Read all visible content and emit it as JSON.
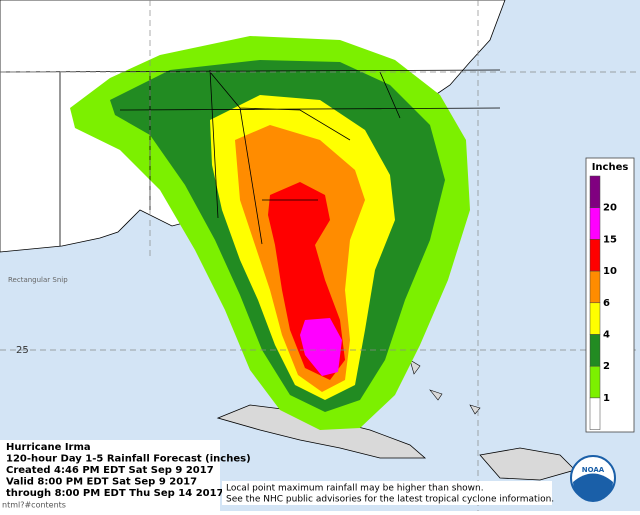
{
  "map": {
    "header": {
      "lines": [
        "Hurricane Irma",
        "120-hour Day 1-5 Rainfall Forecast (inches)",
        "Created 4:46 PM EDT Sat Sep 9 2017",
        "Valid 8:00 PM EDT Sat Sep 9 2017",
        "through 8:00 PM EDT Thu Sep 14 2017"
      ]
    },
    "legend": {
      "title": "Inches",
      "levels": [
        {
          "value": 20,
          "color": "#800080"
        },
        {
          "value": 15,
          "color": "#ff00ff"
        },
        {
          "value": 10,
          "color": "#ff0000"
        },
        {
          "value": 6,
          "color": "#ff8c00"
        },
        {
          "value": 4,
          "color": "#ffff00"
        },
        {
          "value": 2,
          "color": "#228b22"
        },
        {
          "value": 1,
          "color": "#7cf000"
        }
      ]
    },
    "lat_label": "25",
    "snip_label": "Rectangular Snip",
    "url_fragment": "ntml?#contents",
    "footnotes": [
      "Local point maximum rainfall may be higher than shown.",
      "See the NHC public advisories for the latest tropical cyclone information."
    ],
    "logo": "NOAA"
  }
}
